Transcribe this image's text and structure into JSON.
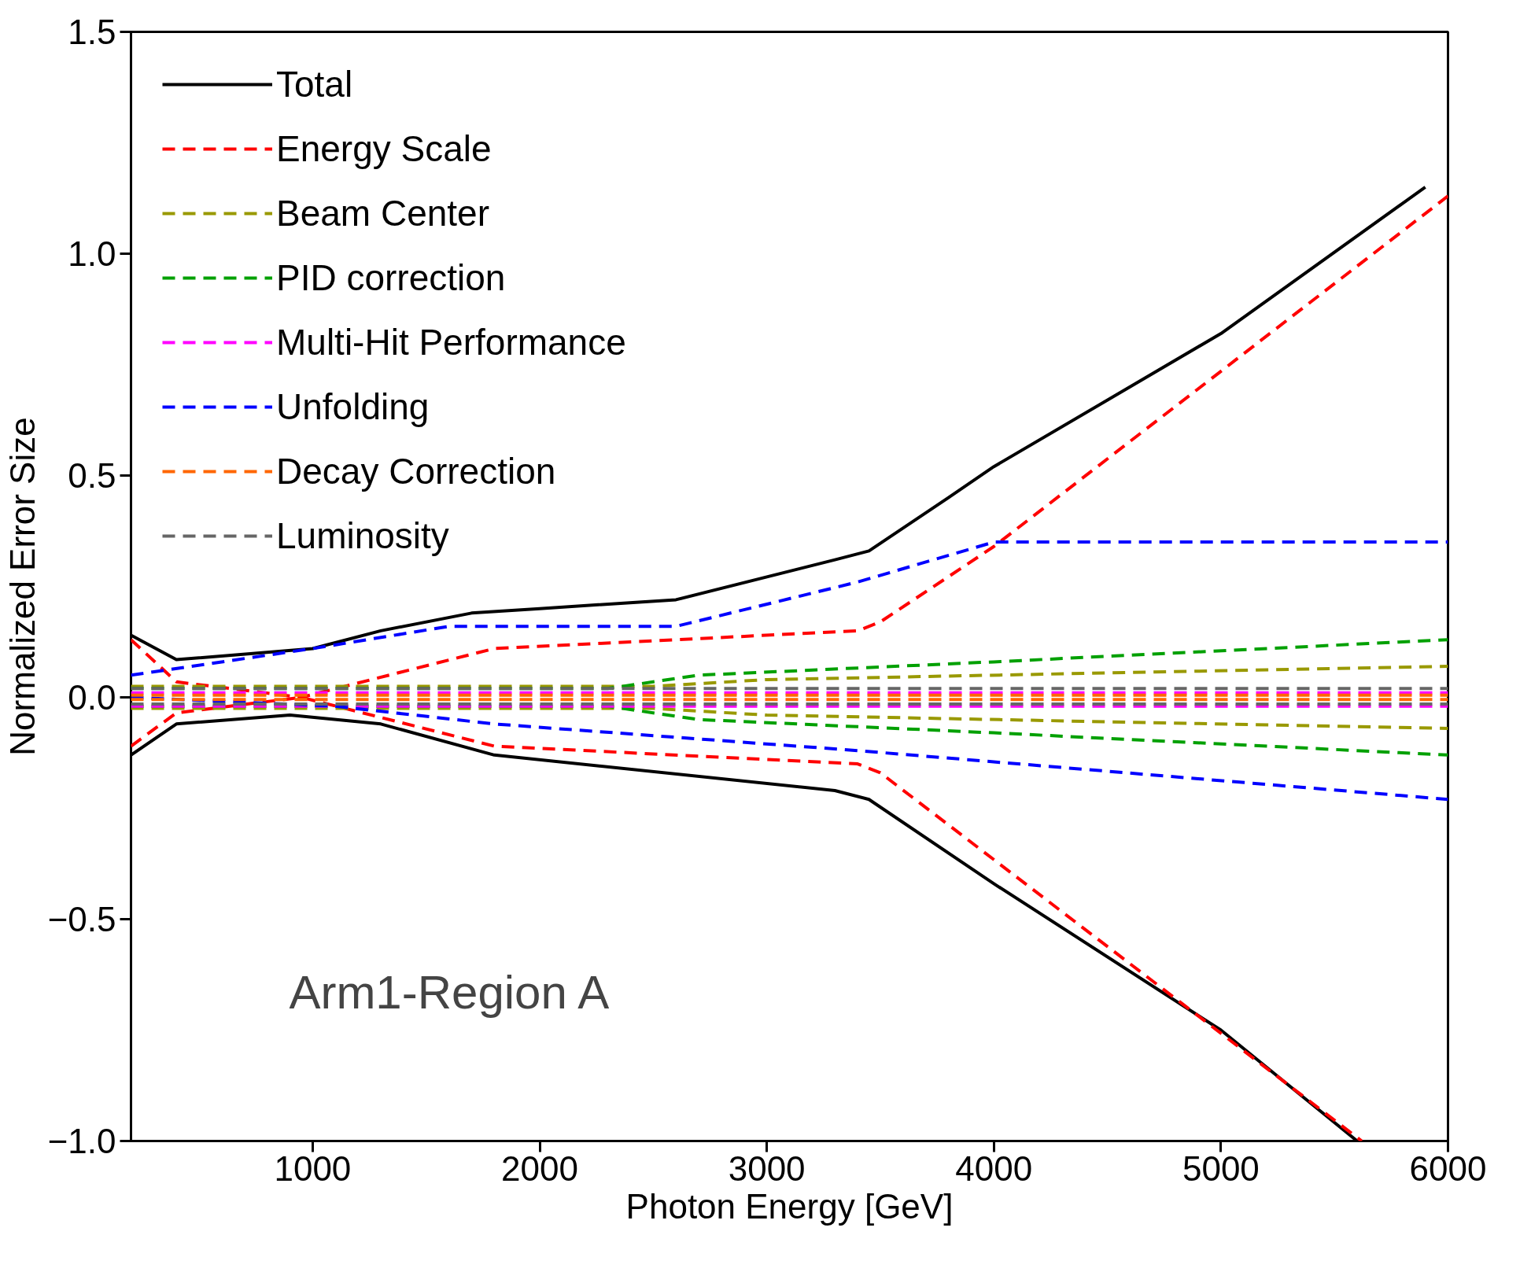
{
  "chart_data": {
    "type": "line",
    "xlabel": "Photon Energy [GeV]",
    "ylabel": "Normalized Error Size",
    "xlim": [
      200,
      6000
    ],
    "ylim": [
      -1.0,
      1.5
    ],
    "xticks": [
      1000,
      2000,
      3000,
      4000,
      5000,
      6000
    ],
    "yticks": [
      {
        "value": -1.0,
        "label": "−1.0"
      },
      {
        "value": -0.5,
        "label": "−0.5"
      },
      {
        "value": 0,
        "label": "0.0"
      },
      {
        "value": 0.5,
        "label": "0.5"
      },
      {
        "value": 1.0,
        "label": "1.0"
      },
      {
        "value": 1.5,
        "label": "1.5"
      }
    ],
    "grid": false,
    "legend": "top left",
    "marker": "none",
    "annotations": [
      "Arm1-Region A"
    ],
    "series": [
      {
        "name": "Total",
        "color": "#000000",
        "line_style": "solid",
        "x": [
          200,
          400,
          1000,
          1300,
          1700,
          2000,
          2600,
          3300,
          3450,
          3800,
          4000,
          5000,
          5900
        ],
        "values": [
          0.14,
          0.085,
          0.11,
          0.15,
          0.19,
          0.2,
          0.22,
          0.31,
          0.33,
          0.45,
          0.52,
          0.82,
          1.15
        ]
      },
      {
        "color": "#000000",
        "line_style": "solid",
        "x": [
          200,
          400,
          900,
          1300,
          1800,
          3300,
          3450,
          4000,
          5000,
          5600
        ],
        "values": [
          -0.13,
          -0.06,
          -0.04,
          -0.06,
          -0.13,
          -0.21,
          -0.23,
          -0.42,
          -0.75,
          -1.0
        ]
      },
      {
        "name": "Energy Scale",
        "color": "#ff0000",
        "line_style": "dashed",
        "x": [
          200,
          400,
          950,
          1800,
          3400,
          3500,
          4000,
          6000
        ],
        "values": [
          0.13,
          0.035,
          0.0,
          0.11,
          0.15,
          0.17,
          0.34,
          1.13
        ]
      },
      {
        "color": "#ff0000",
        "line_style": "dashed",
        "x": [
          200,
          400,
          950,
          1800,
          3400,
          3500,
          5620
        ],
        "values": [
          -0.11,
          -0.035,
          0.0,
          -0.11,
          -0.15,
          -0.17,
          -1.0
        ]
      },
      {
        "name": "Beam Center",
        "color": "#999900",
        "line_style": "dashed",
        "x": [
          200,
          2500,
          3000,
          6000
        ],
        "values": [
          0.025,
          0.025,
          0.04,
          0.07
        ]
      },
      {
        "color": "#999900",
        "line_style": "dashed",
        "x": [
          200,
          2500,
          3000,
          6000
        ],
        "values": [
          -0.025,
          -0.025,
          -0.04,
          -0.07
        ]
      },
      {
        "name": "PID correction",
        "color": "#00a000",
        "line_style": "dashed",
        "x": [
          200,
          2300,
          2700,
          4000,
          6000
        ],
        "values": [
          0.02,
          0.02,
          0.05,
          0.08,
          0.13
        ]
      },
      {
        "color": "#00a000",
        "line_style": "dashed",
        "x": [
          200,
          2300,
          2700,
          4000,
          6000
        ],
        "values": [
          -0.02,
          -0.02,
          -0.05,
          -0.08,
          -0.13
        ]
      },
      {
        "name": "Multi-Hit Performance",
        "color": "#ff00ff",
        "line_style": "dashed",
        "x": [
          200,
          6000
        ],
        "values": [
          0.01,
          0.01
        ]
      },
      {
        "color": "#ff00ff",
        "line_style": "dashed",
        "x": [
          200,
          6000
        ],
        "values": [
          -0.02,
          -0.02
        ]
      },
      {
        "name": "Unfolding",
        "color": "#0000ff",
        "line_style": "dashed",
        "x": [
          200,
          1000,
          1600,
          2600,
          3400,
          4000,
          6000
        ],
        "values": [
          0.05,
          0.11,
          0.16,
          0.16,
          0.26,
          0.35,
          0.35
        ]
      },
      {
        "color": "#0000ff",
        "line_style": "dashed",
        "x": [
          200,
          1100,
          1800,
          3400,
          6000
        ],
        "values": [
          0.0,
          -0.02,
          -0.06,
          -0.12,
          -0.23
        ]
      },
      {
        "name": "Decay Correction",
        "color": "#ff6600",
        "line_style": "dashed",
        "x": [
          200,
          6000
        ],
        "values": [
          0.005,
          0.005
        ]
      },
      {
        "color": "#ff6600",
        "line_style": "dashed",
        "x": [
          200,
          6000
        ],
        "values": [
          -0.005,
          -0.005
        ]
      },
      {
        "name": "Luminosity",
        "color": "#666666",
        "line_style": "dashed",
        "x": [
          200,
          6000
        ],
        "values": [
          0.02,
          0.02
        ]
      },
      {
        "color": "#666666",
        "line_style": "dashed",
        "x": [
          200,
          6000
        ],
        "values": [
          -0.015,
          -0.015
        ]
      }
    ]
  }
}
